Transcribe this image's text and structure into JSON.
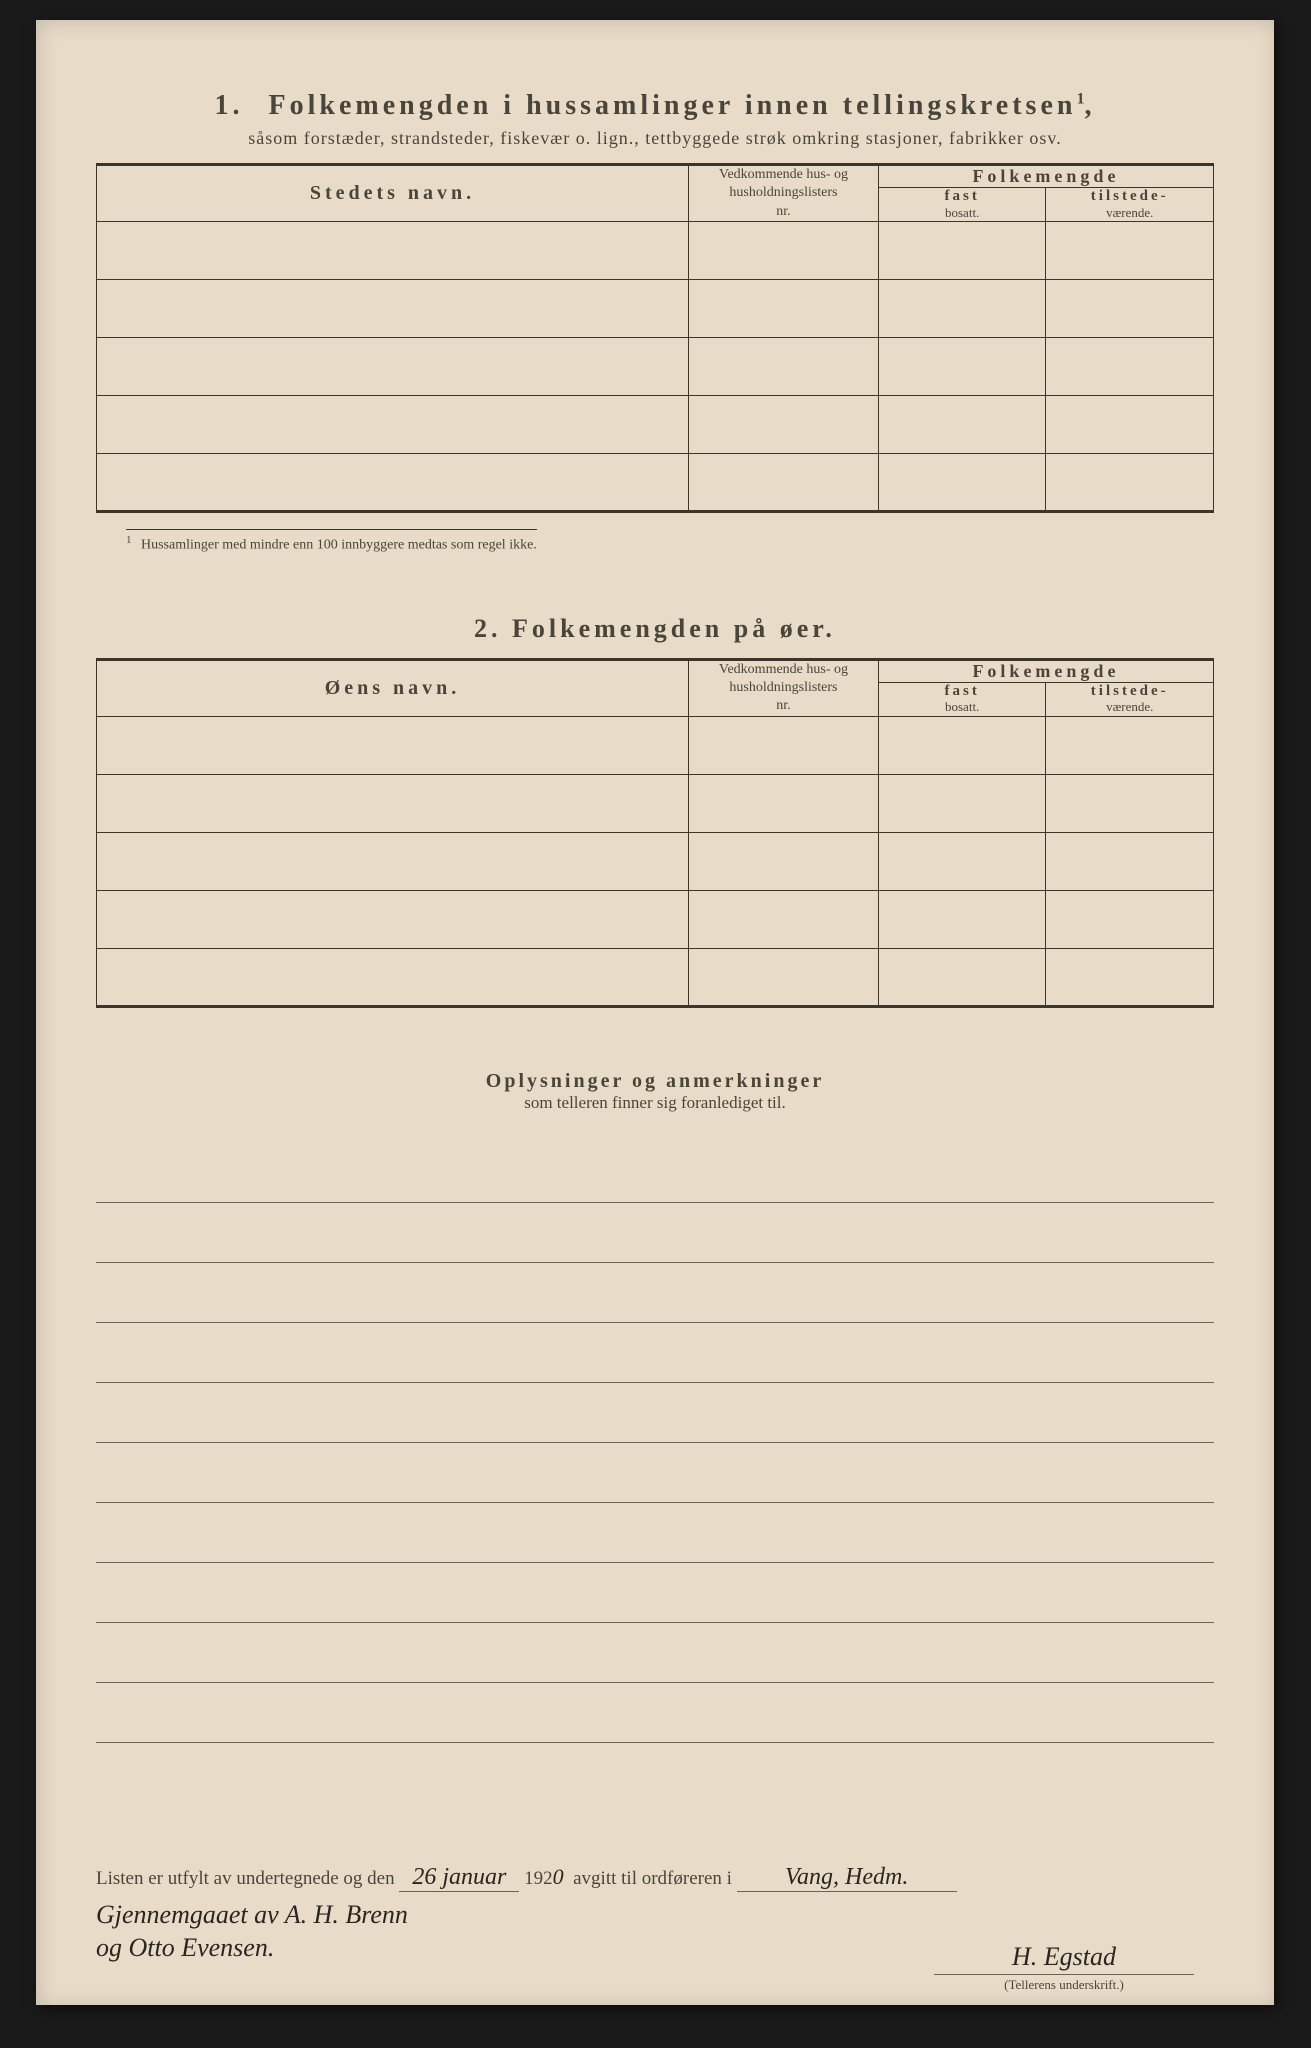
{
  "page": {
    "background_color": "#e8dcc8",
    "text_color": "#4a453a",
    "rule_color": "#3a362c"
  },
  "section1": {
    "number": "1.",
    "title": "Folkemengden i hussamlinger innen tellingskretsen",
    "title_sup": "1",
    "subtitle": "såsom forstæder, strandsteder, fiskevær o. lign., tettbyggede strøk omkring stasjoner, fabrikker osv.",
    "table": {
      "col_name": "Stedets navn.",
      "col_list_l1": "Vedkommende hus- og",
      "col_list_l2": "husholdningslisters",
      "col_list_l3": "nr.",
      "col_folkem": "Folkemengde",
      "col_fast_b": "fast",
      "col_fast_s": "bosatt.",
      "col_til_b": "tilstede-",
      "col_til_s": "værende.",
      "row_count": 5
    },
    "footnote_num": "1",
    "footnote": "Hussamlinger med mindre enn 100 innbyggere medtas som regel ikke."
  },
  "section2": {
    "number": "2.",
    "title": "Folkemengden på øer.",
    "table": {
      "col_name": "Øens navn.",
      "col_list_l1": "Vedkommende hus- og",
      "col_list_l2": "husholdningslisters",
      "col_list_l3": "nr.",
      "col_folkem": "Folkemengde",
      "col_fast_b": "fast",
      "col_fast_s": "bosatt.",
      "col_til_b": "tilstede-",
      "col_til_s": "værende.",
      "row_count": 5
    }
  },
  "section3": {
    "title": "Oplysninger og anmerkninger",
    "subtitle": "som telleren finner sig foranlediget til.",
    "line_count": 10
  },
  "footer": {
    "text_before_date": "Listen er utfylt av undertegnede og den",
    "date_day": "26 januar",
    "year_prefix": "192",
    "year_digit": "0",
    "text_mid": "avgitt til ordføreren i",
    "place": "Vang, Hedm.",
    "hand_line1": "Gjennemgaaet av A. H. Brenn",
    "hand_line2": "og Otto Evensen.",
    "signature": "H. Egstad",
    "sig_caption": "(Tellerens underskrift.)"
  }
}
